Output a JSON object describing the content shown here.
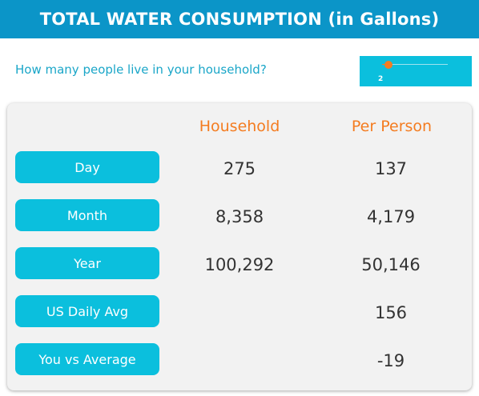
{
  "header": {
    "title": "TOTAL WATER CONSUMPTION (in Gallons)"
  },
  "question": {
    "text": "How many people live in your household?"
  },
  "slider": {
    "value": "2",
    "fraction": 0.15
  },
  "table": {
    "col_household": "Household",
    "col_per_person": "Per Person",
    "rows": [
      {
        "label": "Day",
        "household": "275",
        "per_person": "137"
      },
      {
        "label": "Month",
        "household": "8,358",
        "per_person": "4,179"
      },
      {
        "label": "Year",
        "household": "100,292",
        "per_person": "50,146"
      },
      {
        "label": "US Daily Avg",
        "household": "",
        "per_person": "156"
      },
      {
        "label": "You vs Average",
        "household": "",
        "per_person": "-19"
      }
    ]
  },
  "colors": {
    "header_bg": "#0b95c8",
    "accent": "#0bbfdd",
    "column_heading": "#f47c20",
    "question_text": "#1aa6c8"
  }
}
